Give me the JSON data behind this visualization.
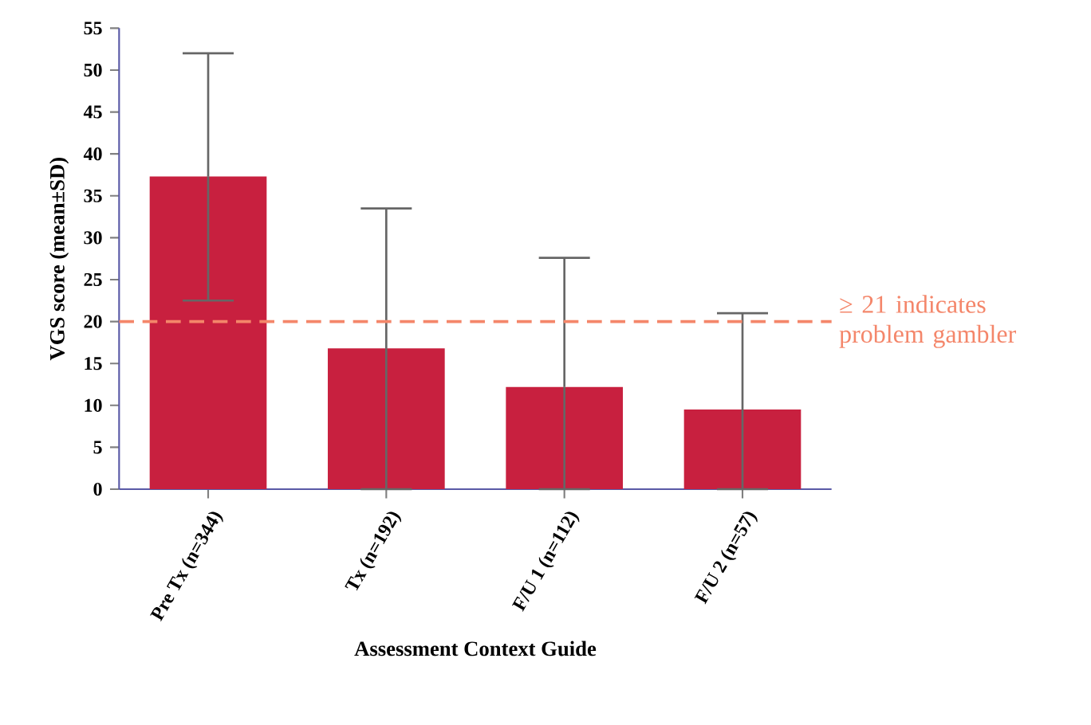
{
  "chart_data": {
    "type": "bar",
    "xlabel": "Assessment Context Guide",
    "ylabel": "VGS score (mean±SD)",
    "categories": [
      "Pre Tx (n=344)",
      "Tx (n=192)",
      "F/U 1 (n=112)",
      "F/U 2 (n=57)"
    ],
    "values": [
      37.3,
      16.8,
      12.2,
      9.5
    ],
    "errors": [
      [
        22.5,
        52.0
      ],
      [
        0,
        33.5
      ],
      [
        0,
        27.6
      ],
      [
        0,
        21.0
      ]
    ],
    "color": "#c8203f",
    "ylim": [
      0,
      55
    ],
    "yticks": [
      0,
      5,
      10,
      15,
      20,
      25,
      30,
      35,
      40,
      45,
      50,
      55
    ],
    "ref_lines": [
      {
        "axis": "y",
        "value": 20,
        "label": "≥ 21 indicates problem gambler",
        "color": "#f4866a",
        "line_style": "dashed"
      }
    ],
    "grid": false
  }
}
